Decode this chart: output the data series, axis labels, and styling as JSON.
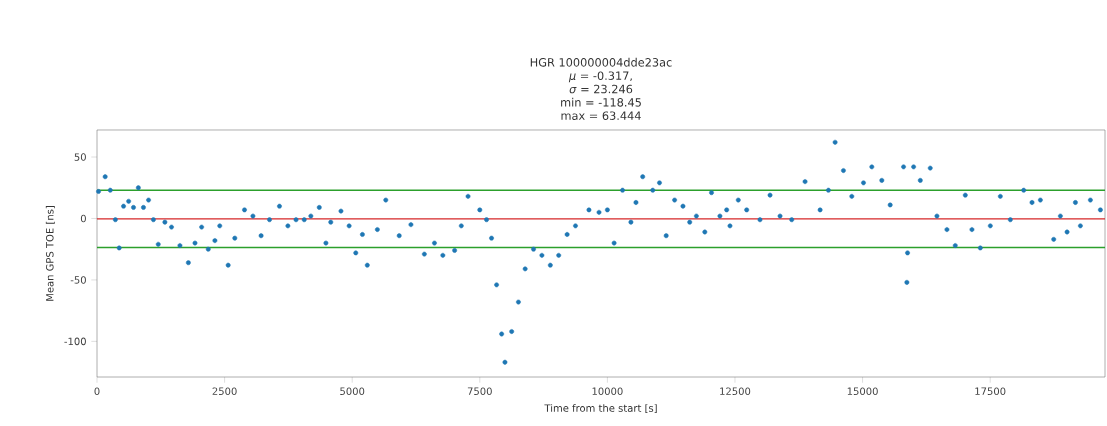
{
  "chart_data": {
    "type": "scatter",
    "title": "HGR 100000004dde23ac",
    "annotations": [
      "*μ* = -0.317,",
      "*σ* = 23.246",
      "min = -118.45",
      "max = 63.444"
    ],
    "xlabel": "Time from the start [s]",
    "ylabel": "Mean GPS TOE [ns]",
    "xlim": [
      0,
      19750
    ],
    "ylim": [
      -129,
      72
    ],
    "xticks": [
      0,
      2500,
      5000,
      7500,
      10000,
      12500,
      15000,
      17500
    ],
    "yticks": [
      -100,
      -50,
      0,
      50
    ],
    "ref_lines": [
      {
        "axis": "y",
        "value": -0.317,
        "color": "#d62728"
      },
      {
        "axis": "y",
        "value": 22.929,
        "color": "#2ca02c"
      },
      {
        "axis": "y",
        "value": -23.563,
        "color": "#2ca02c"
      }
    ],
    "series": [
      {
        "color": "#1f77b4",
        "x": [
          30,
          160,
          260,
          360,
          435,
          520,
          620,
          715,
          810,
          910,
          1010,
          1105,
          1200,
          1330,
          1460,
          1625,
          1790,
          1920,
          2050,
          2180,
          2310,
          2405,
          2570,
          2700,
          2890,
          3055,
          3215,
          3380,
          3575,
          3740,
          3900,
          4060,
          4190,
          4355,
          4485,
          4580,
          4780,
          4940,
          5070,
          5200,
          5296,
          5493,
          5658,
          5921,
          6151,
          6414,
          6612,
          6776,
          7007,
          7138,
          7270,
          7500,
          7632,
          7730,
          7829,
          7928,
          7993,
          8125,
          8257,
          8389,
          8553,
          8717,
          8882,
          9046,
          9211,
          9375,
          9639,
          9836,
          10000,
          10132,
          10297,
          10461,
          10560,
          10692,
          10889,
          11021,
          11152,
          11317,
          11481,
          11613,
          11744,
          11909,
          12040,
          12205,
          12337,
          12402,
          12565,
          12729,
          12990,
          13187,
          13383,
          13612,
          13873,
          14168,
          14331,
          14462,
          14625,
          14789,
          15018,
          15181,
          15377,
          15541,
          15803,
          15868,
          15881,
          16000,
          16131,
          16326,
          16457,
          16653,
          16816,
          17013,
          17143,
          17307,
          17503,
          17699,
          17895,
          18157,
          18320,
          18484,
          18745,
          18876,
          19007,
          19170,
          19268,
          19464,
          19660
        ],
        "values": [
          22,
          34,
          23,
          -1,
          -24,
          10,
          14,
          9,
          25,
          9,
          15,
          -1,
          -21,
          -3,
          -7,
          -22,
          -36,
          -20,
          -7,
          -25,
          -18,
          -6,
          -38,
          -16,
          7,
          2,
          -14,
          -1,
          10,
          -6,
          -1,
          -1,
          2,
          9,
          -20,
          -3,
          6,
          -6,
          -28,
          -13,
          -38,
          -9,
          15,
          -14,
          -5,
          -29,
          -20,
          -30,
          -26,
          -6,
          18,
          7,
          -1,
          -16,
          -54,
          -94,
          -117,
          -92,
          -68,
          -41,
          -25,
          -30,
          -38,
          -30,
          -13,
          -6,
          7,
          5,
          7,
          -20,
          23,
          -3,
          13,
          34,
          23,
          29,
          -14,
          15,
          10,
          -3,
          2,
          -11,
          21,
          2,
          7,
          -6,
          15,
          7,
          -1,
          19,
          2,
          -1,
          30,
          7,
          23,
          62,
          39,
          18,
          29,
          42,
          31,
          11,
          42,
          -52,
          -28,
          42,
          31,
          41,
          2,
          -9,
          -22,
          19,
          -9,
          -24,
          -6,
          18,
          -1,
          23,
          13,
          15,
          -17,
          2,
          -11,
          13,
          -6,
          15,
          7
        ]
      }
    ]
  }
}
